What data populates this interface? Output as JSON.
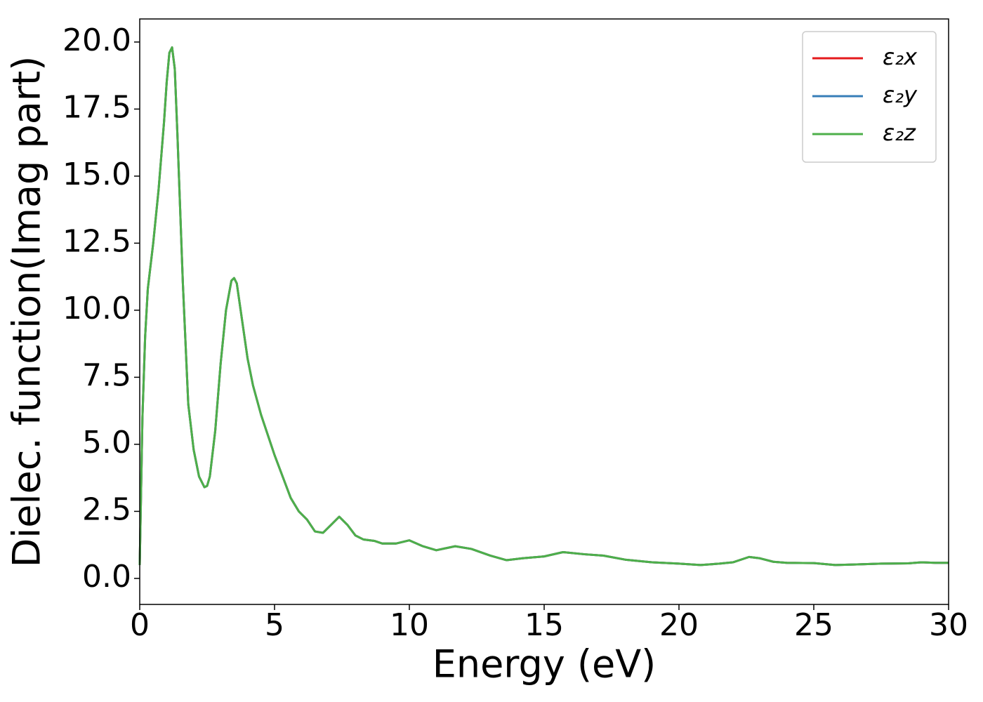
{
  "chart_data": {
    "type": "line",
    "xlabel": "Energy (eV)",
    "ylabel": "Dielec. function(Imag part)",
    "x": [
      0,
      0.1,
      0.2,
      0.3,
      0.5,
      0.7,
      0.9,
      1.0,
      1.1,
      1.2,
      1.3,
      1.4,
      1.6,
      1.8,
      2.0,
      2.2,
      2.4,
      2.5,
      2.6,
      2.8,
      3.0,
      3.2,
      3.4,
      3.5,
      3.6,
      3.8,
      4.0,
      4.2,
      4.5,
      4.8,
      5.0,
      5.3,
      5.6,
      5.9,
      6.2,
      6.5,
      6.8,
      7.1,
      7.4,
      7.7,
      8.0,
      8.3,
      8.7,
      9.0,
      9.5,
      10.0,
      10.5,
      11.0,
      11.7,
      12.3,
      13.0,
      13.6,
      14.2,
      15.0,
      15.7,
      16.5,
      17.2,
      18.0,
      19.0,
      20.0,
      20.8,
      21.5,
      22.0,
      22.6,
      23.0,
      23.5,
      24.0,
      25.0,
      25.8,
      26.5,
      27.5,
      28.5,
      29.0,
      29.5,
      30.0
    ],
    "series": [
      {
        "name": "ε₂x",
        "color": "#e41a1c",
        "values": [
          0.5,
          6,
          9,
          10.8,
          12.5,
          14.5,
          17,
          18.5,
          19.6,
          19.8,
          19,
          16.5,
          11,
          6.5,
          4.8,
          3.8,
          3.4,
          3.45,
          3.8,
          5.5,
          8,
          10,
          11.1,
          11.2,
          11,
          9.6,
          8.2,
          7.2,
          6.1,
          5.2,
          4.6,
          3.8,
          3.0,
          2.5,
          2.2,
          1.75,
          1.7,
          2.0,
          2.3,
          2.0,
          1.6,
          1.45,
          1.4,
          1.3,
          1.3,
          1.42,
          1.2,
          1.05,
          1.2,
          1.1,
          0.85,
          0.68,
          0.75,
          0.82,
          0.98,
          0.9,
          0.85,
          0.7,
          0.6,
          0.55,
          0.5,
          0.55,
          0.6,
          0.8,
          0.75,
          0.62,
          0.58,
          0.57,
          0.5,
          0.52,
          0.55,
          0.56,
          0.6,
          0.58,
          0.58
        ]
      },
      {
        "name": "ε₂y",
        "color": "#377eb8",
        "values": [
          0.5,
          6,
          9,
          10.8,
          12.5,
          14.5,
          17,
          18.5,
          19.6,
          19.8,
          19,
          16.5,
          11,
          6.5,
          4.8,
          3.8,
          3.4,
          3.45,
          3.8,
          5.5,
          8,
          10,
          11.1,
          11.2,
          11,
          9.6,
          8.2,
          7.2,
          6.1,
          5.2,
          4.6,
          3.8,
          3.0,
          2.5,
          2.2,
          1.75,
          1.7,
          2.0,
          2.3,
          2.0,
          1.6,
          1.45,
          1.4,
          1.3,
          1.3,
          1.42,
          1.2,
          1.05,
          1.2,
          1.1,
          0.85,
          0.68,
          0.75,
          0.82,
          0.98,
          0.9,
          0.85,
          0.7,
          0.6,
          0.55,
          0.5,
          0.55,
          0.6,
          0.8,
          0.75,
          0.62,
          0.58,
          0.57,
          0.5,
          0.52,
          0.55,
          0.56,
          0.6,
          0.58,
          0.58
        ]
      },
      {
        "name": "ε₂z",
        "color": "#4daf4a",
        "values": [
          0.5,
          6,
          9,
          10.8,
          12.5,
          14.5,
          17,
          18.5,
          19.6,
          19.8,
          19,
          16.5,
          11,
          6.5,
          4.8,
          3.8,
          3.4,
          3.45,
          3.8,
          5.5,
          8,
          10,
          11.1,
          11.2,
          11,
          9.6,
          8.2,
          7.2,
          6.1,
          5.2,
          4.6,
          3.8,
          3.0,
          2.5,
          2.2,
          1.75,
          1.7,
          2.0,
          2.3,
          2.0,
          1.6,
          1.45,
          1.4,
          1.3,
          1.3,
          1.42,
          1.2,
          1.05,
          1.2,
          1.1,
          0.85,
          0.68,
          0.75,
          0.82,
          0.98,
          0.9,
          0.85,
          0.7,
          0.6,
          0.55,
          0.5,
          0.55,
          0.6,
          0.8,
          0.75,
          0.62,
          0.58,
          0.57,
          0.5,
          0.52,
          0.55,
          0.56,
          0.6,
          0.58,
          0.58
        ]
      }
    ],
    "xlim": [
      0,
      30
    ],
    "xticks": [
      0,
      5,
      10,
      15,
      20,
      25,
      30
    ],
    "ylim": [
      -0.97,
      20.86
    ],
    "yticks": [
      {
        "value": 0,
        "label": "0.0"
      },
      2.5,
      {
        "value": 5,
        "label": "5.0"
      },
      7.5,
      {
        "value": 10,
        "label": "10.0"
      },
      12.5,
      {
        "value": 15,
        "label": "15.0"
      },
      17.5,
      {
        "value": 20,
        "label": "20.0"
      }
    ],
    "legend": "upper right"
  }
}
